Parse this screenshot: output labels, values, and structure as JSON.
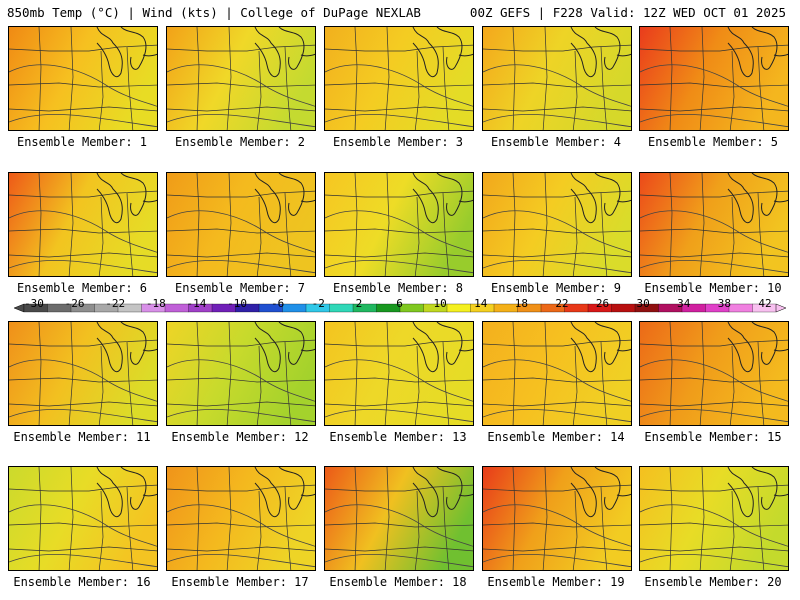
{
  "header": {
    "left": "850mb Temp (°C) | Wind (kts) | College of DuPage NEXLAB",
    "right": "00Z GEFS | F228 Valid: 12Z WED OCT 01 2025"
  },
  "members": [
    {
      "label": "Ensemble Member: 1",
      "colors": {
        "west": "#f08a14",
        "center": "#f6c020",
        "east": "#e8dc24"
      }
    },
    {
      "label": "Ensemble Member: 2",
      "colors": {
        "west": "#f2a218",
        "center": "#f0d828",
        "east": "#c4da30"
      }
    },
    {
      "label": "Ensemble Member: 3",
      "colors": {
        "west": "#f2b01e",
        "center": "#f4cc22",
        "east": "#e4dc26"
      }
    },
    {
      "label": "Ensemble Member: 4",
      "colors": {
        "west": "#f4a81c",
        "center": "#eed426",
        "east": "#d6d82a"
      }
    },
    {
      "label": "Ensemble Member: 5",
      "colors": {
        "west": "#ea3c1c",
        "center": "#f08c16",
        "east": "#f4b61e"
      }
    },
    {
      "label": "Ensemble Member: 6",
      "colors": {
        "west": "#ee5a18",
        "center": "#f2c420",
        "east": "#e6dc26"
      }
    },
    {
      "label": "Ensemble Member: 7",
      "colors": {
        "west": "#f09c18",
        "center": "#f4ba1e",
        "east": "#eec420"
      }
    },
    {
      "label": "Ensemble Member: 8",
      "colors": {
        "west": "#f6c622",
        "center": "#eedc26",
        "east": "#98cc2c"
      }
    },
    {
      "label": "Ensemble Member: 9",
      "colors": {
        "west": "#f2a81c",
        "center": "#f4cc22",
        "east": "#dadc2a"
      }
    },
    {
      "label": "Ensemble Member: 10",
      "colors": {
        "west": "#ec4a1a",
        "center": "#f0a01a",
        "east": "#f2c420"
      }
    },
    {
      "label": "Ensemble Member: 11",
      "colors": {
        "west": "#f0901a",
        "center": "#f2c020",
        "east": "#dcdc28"
      }
    },
    {
      "label": "Ensemble Member: 12",
      "colors": {
        "west": "#eed426",
        "center": "#c8da2c",
        "east": "#a4d22c"
      }
    },
    {
      "label": "Ensemble Member: 13",
      "colors": {
        "west": "#f4c420",
        "center": "#eed828",
        "east": "#e6dc26"
      }
    },
    {
      "label": "Ensemble Member: 14",
      "colors": {
        "west": "#f4b01e",
        "center": "#f6c020",
        "east": "#f0d024"
      }
    },
    {
      "label": "Ensemble Member: 15",
      "colors": {
        "west": "#ec6a18",
        "center": "#f09c1a",
        "east": "#f4ba1e"
      }
    },
    {
      "label": "Ensemble Member: 16",
      "colors": {
        "west": "#ccda2c",
        "center": "#e8dc26",
        "east": "#f4c422"
      }
    },
    {
      "label": "Ensemble Member: 17",
      "colors": {
        "west": "#f0941a",
        "center": "#f4b81e",
        "east": "#eed426"
      }
    },
    {
      "label": "Ensemble Member: 18",
      "colors": {
        "west": "#ec5a18",
        "center": "#f0c020",
        "east": "#70c030"
      }
    },
    {
      "label": "Ensemble Member: 19",
      "colors": {
        "west": "#e83c1a",
        "center": "#f0a01a",
        "east": "#f2cc22"
      }
    },
    {
      "label": "Ensemble Member: 20",
      "colors": {
        "west": "#f4c020",
        "center": "#e8dc26",
        "east": "#c4da2c"
      }
    }
  ],
  "colorbar": {
    "labels": [
      "-30",
      "-26",
      "-22",
      "-18",
      "-14",
      "-10",
      "-6",
      "-2",
      "2",
      "6",
      "10",
      "14",
      "18",
      "22",
      "26",
      "30",
      "34",
      "38",
      "42"
    ],
    "colors": [
      "#4a4a4a",
      "#6c6c6c",
      "#8e8e8e",
      "#a8a8a8",
      "#c4c4c4",
      "#d890e8",
      "#c060d8",
      "#a040c8",
      "#7020b8",
      "#3020a8",
      "#2050d0",
      "#2090e8",
      "#30c8e8",
      "#30d8b8",
      "#20b860",
      "#189820",
      "#80c820",
      "#c0d820",
      "#f4f020",
      "#f4d020",
      "#f4b018",
      "#f09018",
      "#ec6818",
      "#e83818",
      "#d81818",
      "#b81010",
      "#901010",
      "#b01060",
      "#d020a0",
      "#e040c8",
      "#f080e0",
      "#f8c0f0"
    ]
  }
}
